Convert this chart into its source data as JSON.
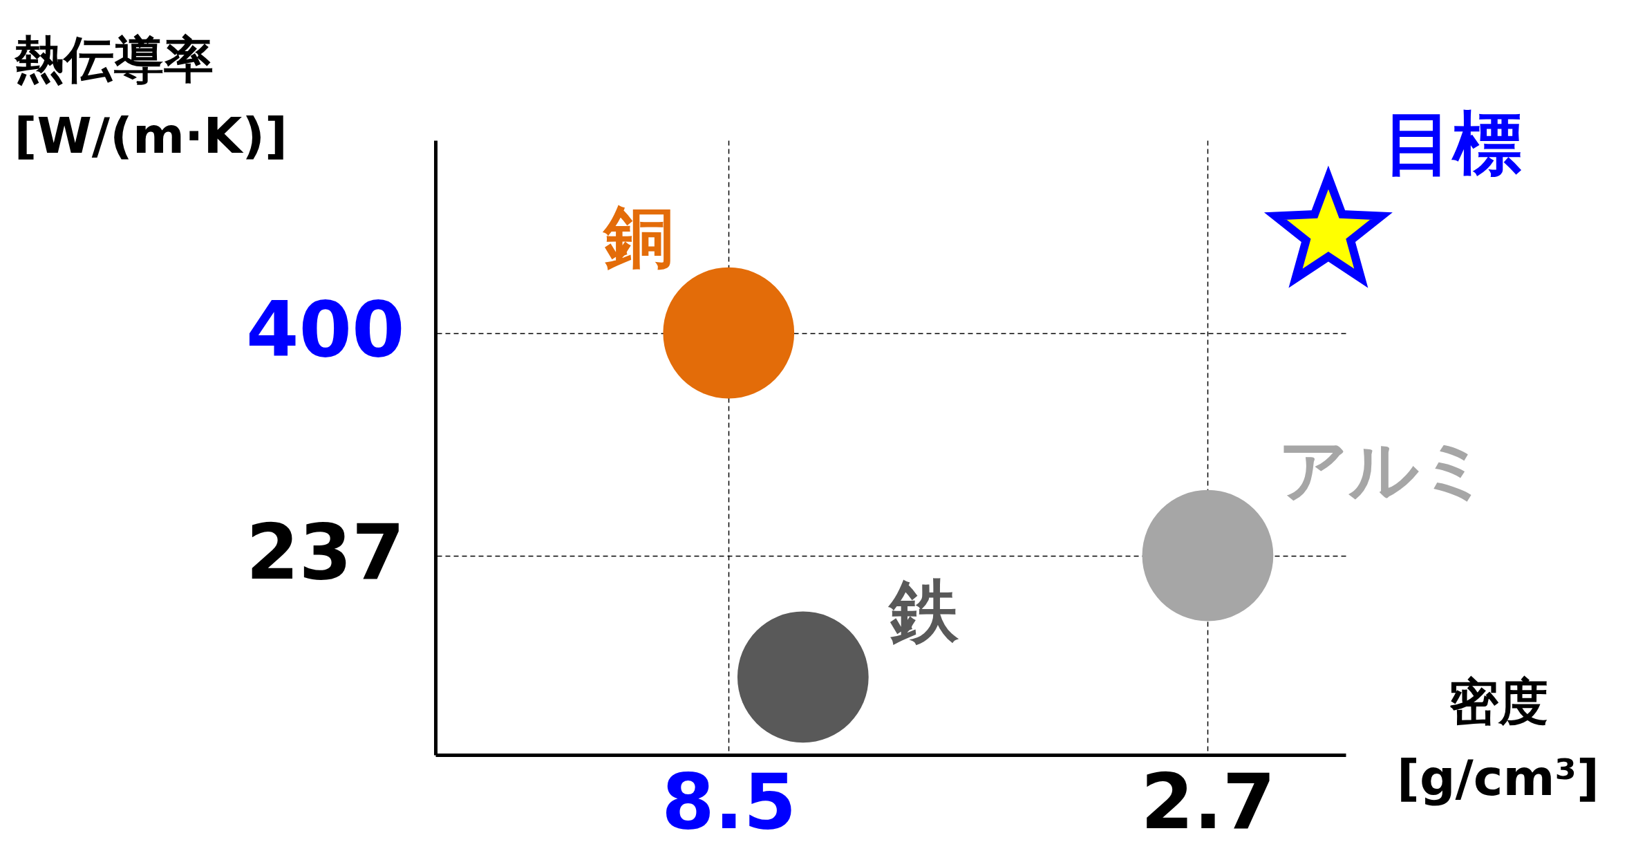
{
  "chart_data": {
    "type": "scatter",
    "xlabel": "密度\n[g/cm³]",
    "ylabel": "熱伝導率\n[W/(m·K)]",
    "xlim": [
      12.05,
      1.03
    ],
    "ylim": [
      91,
      541
    ],
    "xticks": [
      8.5,
      2.7
    ],
    "yticks": [
      237,
      400
    ],
    "grid": true,
    "marker": "circle",
    "series": [
      {
        "name": "銅",
        "color": "#e36c09",
        "x": [
          8.5
        ],
        "values": [
          400
        ]
      },
      {
        "name": "鉄",
        "color": "#595959",
        "x": [
          7.6
        ],
        "values": [
          148
        ]
      },
      {
        "name": "アルミ",
        "color": "#a6a6a6",
        "x": [
          2.7
        ],
        "values": [
          237
        ]
      },
      {
        "name": "目標",
        "color": "#ffff00",
        "marker": "star",
        "x": [
          1.24
        ],
        "values": [
          473
        ]
      }
    ]
  }
}
